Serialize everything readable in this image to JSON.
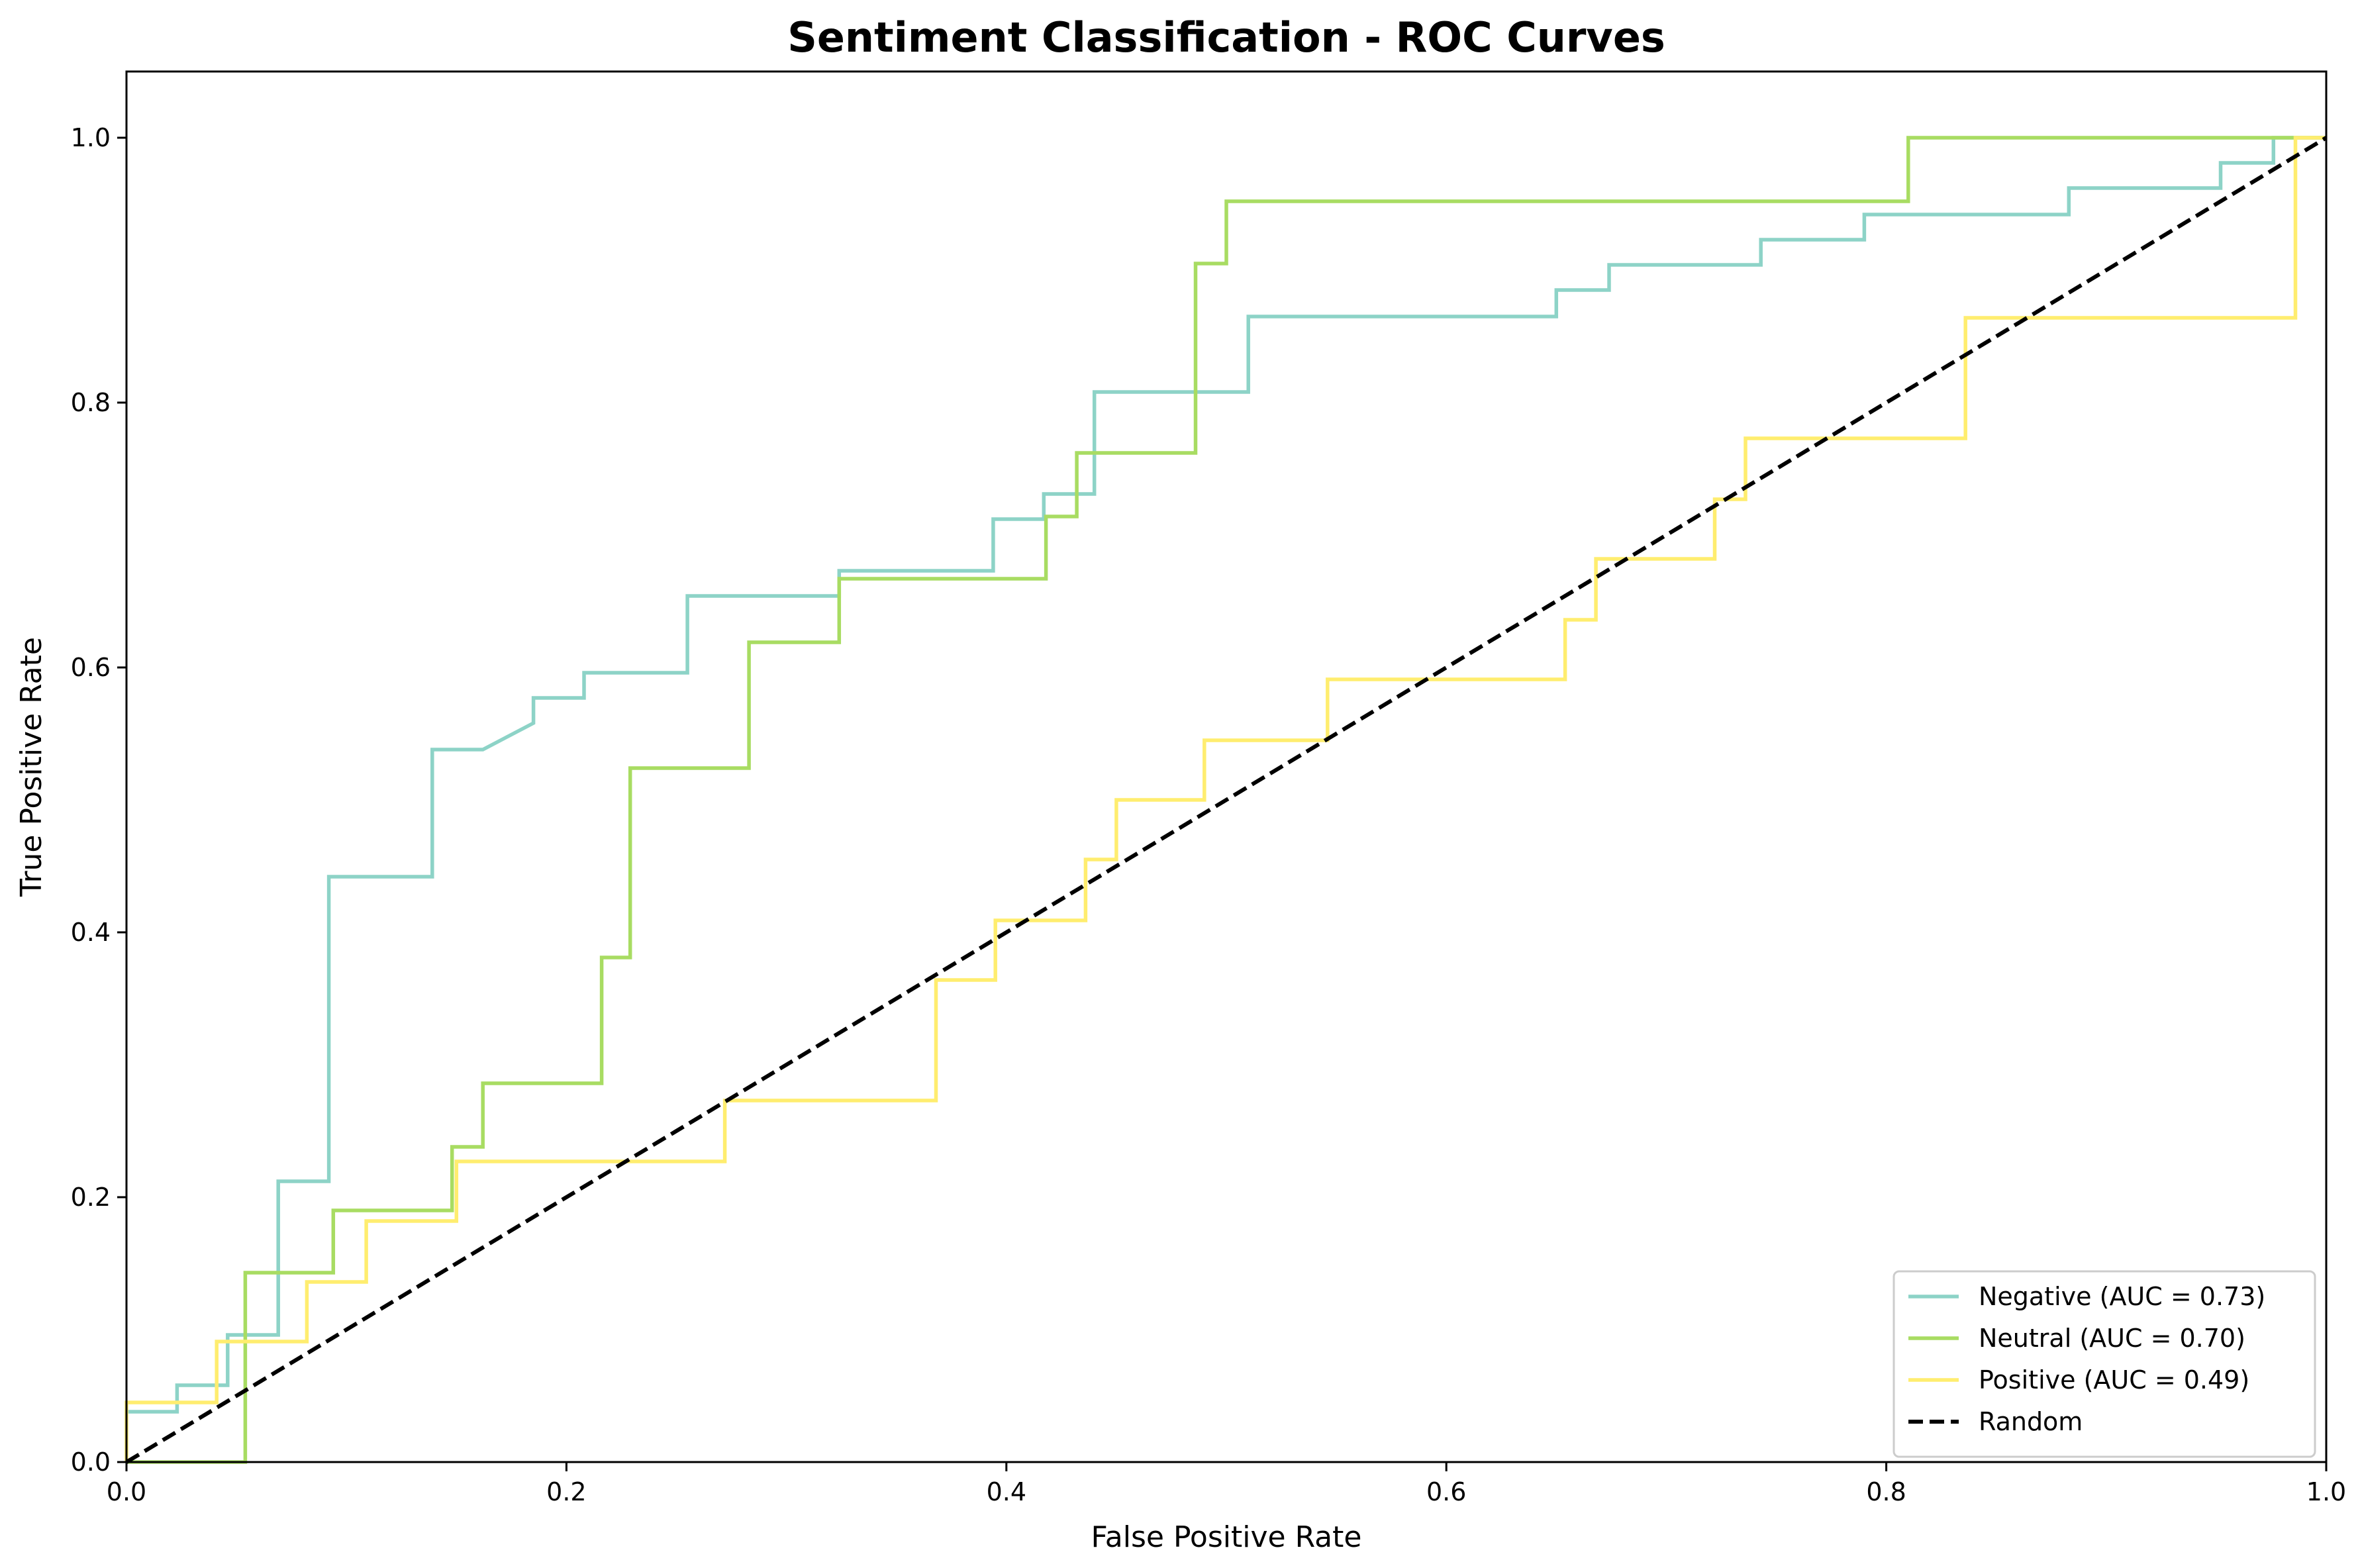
{
  "chart_data": {
    "type": "line",
    "title": "Sentiment Classification - ROC Curves",
    "xlabel": "False Positive Rate",
    "ylabel": "True Positive Rate",
    "xlim": [
      0,
      1
    ],
    "ylim": [
      0,
      1.05
    ],
    "x_ticks": [
      "0.0",
      "0.2",
      "0.4",
      "0.6",
      "0.8",
      "1.0"
    ],
    "y_ticks": [
      "0.0",
      "0.2",
      "0.4",
      "0.6",
      "0.8",
      "1.0"
    ],
    "grid": false,
    "legend_position": "lower-right",
    "series": [
      {
        "name": "Negative (AUC = 0.73)",
        "color": "#8dd3c7",
        "style": "solid",
        "points": [
          [
            0.0,
            0.0
          ],
          [
            0.0,
            0.038
          ],
          [
            0.023,
            0.038
          ],
          [
            0.023,
            0.058
          ],
          [
            0.046,
            0.058
          ],
          [
            0.046,
            0.096
          ],
          [
            0.069,
            0.096
          ],
          [
            0.069,
            0.212
          ],
          [
            0.092,
            0.212
          ],
          [
            0.092,
            0.442
          ],
          [
            0.139,
            0.442
          ],
          [
            0.139,
            0.538
          ],
          [
            0.162,
            0.538
          ],
          [
            0.185,
            0.558
          ],
          [
            0.185,
            0.577
          ],
          [
            0.208,
            0.577
          ],
          [
            0.208,
            0.596
          ],
          [
            0.255,
            0.596
          ],
          [
            0.255,
            0.654
          ],
          [
            0.324,
            0.654
          ],
          [
            0.324,
            0.673
          ],
          [
            0.394,
            0.673
          ],
          [
            0.394,
            0.712
          ],
          [
            0.417,
            0.712
          ],
          [
            0.417,
            0.731
          ],
          [
            0.44,
            0.731
          ],
          [
            0.44,
            0.808
          ],
          [
            0.51,
            0.808
          ],
          [
            0.51,
            0.865
          ],
          [
            0.65,
            0.865
          ],
          [
            0.65,
            0.885
          ],
          [
            0.674,
            0.885
          ],
          [
            0.674,
            0.904
          ],
          [
            0.743,
            0.904
          ],
          [
            0.743,
            0.923
          ],
          [
            0.79,
            0.923
          ],
          [
            0.79,
            0.942
          ],
          [
            0.883,
            0.942
          ],
          [
            0.883,
            0.962
          ],
          [
            0.952,
            0.962
          ],
          [
            0.952,
            0.981
          ],
          [
            0.976,
            0.981
          ],
          [
            0.976,
            1.0
          ],
          [
            1.0,
            1.0
          ]
        ]
      },
      {
        "name": "Neutral (AUC = 0.70)",
        "color": "#a8dc62",
        "style": "solid",
        "points": [
          [
            0.0,
            0.0
          ],
          [
            0.054,
            0.0
          ],
          [
            0.054,
            0.143
          ],
          [
            0.094,
            0.143
          ],
          [
            0.094,
            0.19
          ],
          [
            0.148,
            0.19
          ],
          [
            0.148,
            0.238
          ],
          [
            0.162,
            0.238
          ],
          [
            0.162,
            0.286
          ],
          [
            0.216,
            0.286
          ],
          [
            0.216,
            0.381
          ],
          [
            0.229,
            0.381
          ],
          [
            0.229,
            0.524
          ],
          [
            0.283,
            0.524
          ],
          [
            0.283,
            0.619
          ],
          [
            0.324,
            0.619
          ],
          [
            0.324,
            0.667
          ],
          [
            0.418,
            0.667
          ],
          [
            0.418,
            0.714
          ],
          [
            0.432,
            0.714
          ],
          [
            0.432,
            0.762
          ],
          [
            0.486,
            0.762
          ],
          [
            0.486,
            0.905
          ],
          [
            0.5,
            0.905
          ],
          [
            0.5,
            0.952
          ],
          [
            0.81,
            0.952
          ],
          [
            0.81,
            1.0
          ],
          [
            1.0,
            1.0
          ]
        ]
      },
      {
        "name": "Positive (AUC = 0.49)",
        "color": "#ffed6f",
        "style": "solid",
        "points": [
          [
            0.0,
            0.0
          ],
          [
            0.0,
            0.045
          ],
          [
            0.041,
            0.045
          ],
          [
            0.041,
            0.091
          ],
          [
            0.082,
            0.091
          ],
          [
            0.082,
            0.136
          ],
          [
            0.109,
            0.136
          ],
          [
            0.109,
            0.182
          ],
          [
            0.15,
            0.182
          ],
          [
            0.15,
            0.227
          ],
          [
            0.272,
            0.227
          ],
          [
            0.272,
            0.273
          ],
          [
            0.368,
            0.273
          ],
          [
            0.368,
            0.364
          ],
          [
            0.395,
            0.364
          ],
          [
            0.395,
            0.409
          ],
          [
            0.436,
            0.409
          ],
          [
            0.436,
            0.455
          ],
          [
            0.45,
            0.455
          ],
          [
            0.45,
            0.5
          ],
          [
            0.49,
            0.5
          ],
          [
            0.49,
            0.545
          ],
          [
            0.546,
            0.545
          ],
          [
            0.546,
            0.591
          ],
          [
            0.654,
            0.591
          ],
          [
            0.654,
            0.636
          ],
          [
            0.668,
            0.636
          ],
          [
            0.668,
            0.682
          ],
          [
            0.722,
            0.682
          ],
          [
            0.722,
            0.727
          ],
          [
            0.736,
            0.727
          ],
          [
            0.736,
            0.773
          ],
          [
            0.836,
            0.773
          ],
          [
            0.836,
            0.864
          ],
          [
            0.986,
            0.864
          ],
          [
            0.986,
            1.0
          ],
          [
            1.0,
            1.0
          ]
        ]
      },
      {
        "name": "Random",
        "color": "#000000",
        "style": "dashed",
        "points": [
          [
            0.0,
            0.0
          ],
          [
            1.0,
            1.0
          ]
        ]
      }
    ]
  }
}
